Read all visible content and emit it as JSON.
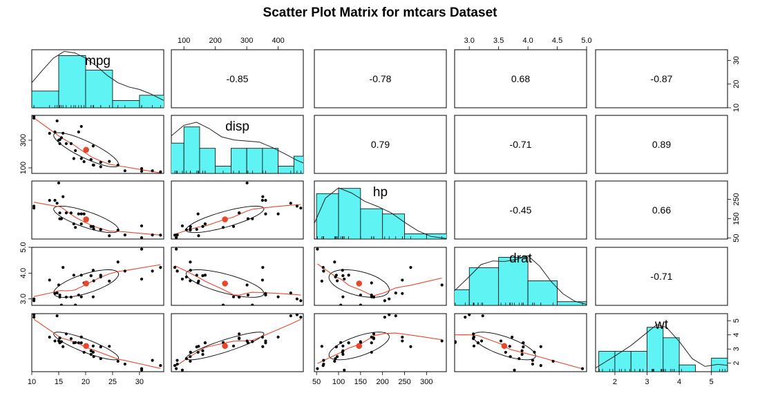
{
  "chart_data": {
    "type": "scatter-matrix",
    "title": "Scatter Plot Matrix for mtcars Dataset",
    "variables": [
      {
        "name": "mpg",
        "range": [
          10,
          34.5
        ],
        "ticks": [
          10,
          15,
          20,
          25,
          30
        ],
        "mean": 20.09
      },
      {
        "name": "disp",
        "range": [
          60,
          480
        ],
        "ticks": [
          100,
          200,
          300,
          400
        ],
        "mean": 230.7
      },
      {
        "name": "hp",
        "range": [
          45,
          345
        ],
        "ticks": [
          50,
          100,
          150,
          200,
          250,
          300
        ],
        "mean": 146.7
      },
      {
        "name": "drat",
        "range": [
          2.75,
          5.0
        ],
        "ticks": [
          3.0,
          3.5,
          4.0,
          4.5,
          5.0
        ],
        "mean": 3.6
      },
      {
        "name": "wt",
        "range": [
          1.4,
          5.5
        ],
        "ticks": [
          2,
          3,
          4,
          5
        ],
        "mean": 3.22
      }
    ],
    "axes": {
      "top": [
        {
          "col": 1,
          "ticks": [
            "100",
            "200",
            "300",
            "400"
          ]
        },
        {
          "col": 3,
          "ticks": [
            "3.0",
            "3.5",
            "4.0",
            "4.5",
            "5.0"
          ]
        }
      ],
      "bottom": [
        {
          "col": 0,
          "ticks": [
            "10",
            "15",
            "20",
            "25",
            "30"
          ]
        },
        {
          "col": 2,
          "ticks": [
            "50",
            "100",
            "150",
            "200",
            "250",
            "300"
          ]
        },
        {
          "col": 4,
          "ticks": [
            "2",
            "3",
            "4",
            "5"
          ]
        }
      ],
      "left": [
        {
          "row": 1,
          "ticks": [
            "100",
            "300"
          ]
        },
        {
          "row": 3,
          "ticks": [
            "3.0",
            "4.0",
            "5.0"
          ]
        }
      ],
      "right": [
        {
          "row": 0,
          "ticks": [
            "10",
            "20",
            "30"
          ]
        },
        {
          "row": 2,
          "ticks": [
            "50",
            "150",
            "250"
          ]
        },
        {
          "row": 4,
          "ticks": [
            "2",
            "3",
            "4",
            "5"
          ]
        }
      ]
    },
    "correlations": [
      {
        "row": 0,
        "col": 1,
        "label": "-0.85"
      },
      {
        "row": 0,
        "col": 2,
        "label": "-0.78"
      },
      {
        "row": 0,
        "col": 3,
        "label": "0.68"
      },
      {
        "row": 0,
        "col": 4,
        "label": "-0.87"
      },
      {
        "row": 1,
        "col": 2,
        "label": "0.79"
      },
      {
        "row": 1,
        "col": 3,
        "label": "-0.71"
      },
      {
        "row": 1,
        "col": 4,
        "label": "0.89"
      },
      {
        "row": 2,
        "col": 3,
        "label": "-0.45"
      },
      {
        "row": 2,
        "col": 4,
        "label": "0.66"
      },
      {
        "row": 3,
        "col": 4,
        "label": "-0.71"
      }
    ],
    "histograms": [
      {
        "var": "mpg",
        "breaks": [
          10,
          15,
          20,
          25,
          30,
          35
        ],
        "heights": [
          0.32,
          1.0,
          0.72,
          0.14,
          0.24
        ]
      },
      {
        "var": "disp",
        "breaks": [
          50,
          100,
          150,
          200,
          250,
          300,
          350,
          400,
          450,
          500
        ],
        "heights": [
          0.58,
          0.89,
          0.48,
          0.14,
          0.48,
          0.48,
          0.48,
          0.14,
          0.33
        ]
      },
      {
        "var": "hp",
        "breaks": [
          50,
          100,
          150,
          200,
          250,
          300,
          350
        ],
        "heights": [
          0.87,
          0.97,
          0.58,
          0.48,
          0.1,
          0.1
        ]
      },
      {
        "var": "drat",
        "breaks": [
          2.5,
          3.0,
          3.5,
          4.0,
          4.5,
          5.0
        ],
        "heights": [
          0.3,
          0.72,
          0.92,
          0.47,
          0.07
        ]
      },
      {
        "var": "wt",
        "breaks": [
          1.5,
          2.0,
          2.5,
          3.0,
          3.5,
          4.0,
          4.5,
          5.0,
          5.5
        ],
        "heights": [
          0.39,
          0.39,
          0.39,
          0.85,
          0.65,
          0.13,
          0.0,
          0.26
        ]
      }
    ],
    "densities": [
      {
        "var": "mpg",
        "x": [
          10,
          12,
          14,
          16,
          18,
          20,
          22,
          24,
          26,
          28,
          30,
          32,
          34.5
        ],
        "y": [
          0.48,
          0.72,
          0.95,
          1.08,
          1.05,
          0.95,
          0.8,
          0.62,
          0.48,
          0.4,
          0.35,
          0.27,
          0.14
        ]
      },
      {
        "var": "disp",
        "x": [
          60,
          100,
          140,
          180,
          220,
          260,
          300,
          340,
          380,
          420,
          460,
          480
        ],
        "y": [
          0.72,
          0.92,
          0.98,
          0.86,
          0.7,
          0.64,
          0.62,
          0.6,
          0.5,
          0.38,
          0.25,
          0.2
        ]
      },
      {
        "var": "hp",
        "x": [
          45,
          70,
          100,
          130,
          160,
          190,
          220,
          250,
          280,
          310,
          345
        ],
        "y": [
          0.3,
          0.78,
          0.98,
          0.88,
          0.72,
          0.62,
          0.5,
          0.32,
          0.16,
          0.05,
          0.01
        ]
      },
      {
        "var": "drat",
        "x": [
          2.75,
          3.0,
          3.2,
          3.4,
          3.6,
          3.8,
          4.0,
          4.2,
          4.4,
          4.6,
          4.8,
          5.0
        ],
        "y": [
          0.28,
          0.55,
          0.78,
          0.85,
          0.84,
          0.88,
          0.95,
          0.75,
          0.45,
          0.22,
          0.08,
          0.02
        ]
      },
      {
        "var": "wt",
        "x": [
          1.4,
          2.0,
          2.5,
          3.0,
          3.3,
          3.6,
          4.0,
          4.4,
          4.8,
          5.2,
          5.5
        ],
        "y": [
          0.07,
          0.3,
          0.5,
          0.75,
          0.9,
          0.85,
          0.58,
          0.25,
          0.1,
          0.14,
          0.12
        ]
      }
    ],
    "data": {
      "mpg": [
        21.0,
        21.0,
        22.8,
        21.4,
        18.7,
        18.1,
        14.3,
        24.4,
        22.8,
        19.2,
        17.8,
        16.4,
        17.3,
        15.2,
        10.4,
        10.4,
        14.7,
        32.4,
        30.4,
        33.9,
        21.5,
        15.5,
        15.2,
        13.3,
        19.2,
        27.3,
        26.0,
        30.4,
        15.8,
        19.7,
        15.0,
        21.4
      ],
      "disp": [
        160,
        160,
        108,
        258,
        360,
        225,
        360,
        146.7,
        140.8,
        167.6,
        167.6,
        275.8,
        275.8,
        275.8,
        472,
        460,
        440,
        78.7,
        75.7,
        71.1,
        120.1,
        318,
        304,
        350,
        400,
        79,
        120.3,
        95.1,
        351,
        145,
        301,
        121
      ],
      "hp": [
        110,
        110,
        93,
        110,
        175,
        105,
        245,
        62,
        95,
        123,
        123,
        180,
        180,
        180,
        205,
        215,
        230,
        66,
        52,
        65,
        97,
        150,
        150,
        245,
        175,
        66,
        91,
        113,
        264,
        175,
        335,
        109
      ],
      "drat": [
        3.9,
        3.9,
        3.85,
        3.08,
        3.15,
        2.76,
        3.21,
        3.69,
        3.92,
        3.92,
        3.92,
        3.07,
        3.07,
        3.07,
        2.93,
        3.0,
        3.23,
        4.08,
        4.93,
        4.22,
        3.7,
        2.76,
        3.15,
        3.73,
        3.08,
        4.08,
        4.43,
        3.77,
        4.22,
        3.62,
        3.54,
        4.11
      ],
      "wt": [
        2.62,
        2.875,
        2.32,
        3.215,
        3.44,
        3.46,
        3.57,
        3.19,
        3.15,
        3.44,
        3.44,
        4.07,
        3.73,
        3.78,
        5.25,
        5.424,
        5.345,
        2.2,
        1.615,
        1.835,
        2.465,
        3.52,
        3.435,
        3.84,
        3.845,
        1.935,
        2.14,
        1.513,
        3.17,
        2.77,
        3.57,
        2.78
      ]
    },
    "colors": {
      "histogram": "#5ff3f3",
      "points": "#000000",
      "smooth": "#e8472b",
      "centroid": "#e8472b",
      "ellipse": "#000000",
      "panel_border": "#000000"
    }
  }
}
